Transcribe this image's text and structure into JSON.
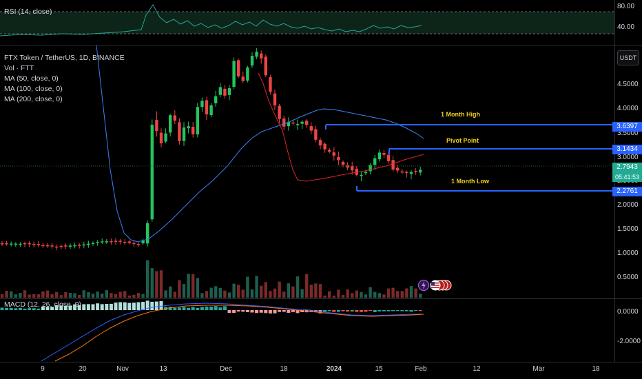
{
  "rsi": {
    "label": "RSI (14, close)",
    "ticks": [
      "80.00",
      "40.00"
    ]
  },
  "main": {
    "legend": [
      "FTX Token / TetherUS, 1D, BINANCE",
      "Vol · FTT",
      "MA (50, close, 0)",
      "MA (100, close, 0)",
      "MA (200, close, 0)"
    ],
    "currency_button": "USDT",
    "price_ticks": [
      "4.5000",
      "4.0000",
      "3.5000",
      "3.0000",
      "2.5000",
      "2.0000",
      "1.5000",
      "1.0000",
      "0.5000"
    ],
    "annotations": {
      "high_label": "1 Month High",
      "pivot_label": "Pivot Point",
      "low_label": "1 Month Low"
    },
    "price_tags": {
      "high": "3.6397",
      "pivot": "3.1434",
      "last": "2.7943",
      "countdown": "05:41:53",
      "low": "2.2761"
    },
    "colors": {
      "up": "#22c55e",
      "down": "#ef4444",
      "ma_blue": "#3b82f6",
      "ma_red": "#dc2626",
      "level_line": "#2962ff",
      "annotation": "#f2d11a",
      "last_price": "#22ab94"
    }
  },
  "macd": {
    "label": "MACD (12, 26, close, 9)",
    "ticks": [
      "0.0000",
      "-2.0000"
    ]
  },
  "time_axis": {
    "labels": [
      {
        "text": "9",
        "bold": false
      },
      {
        "text": "20",
        "bold": false
      },
      {
        "text": "Nov",
        "bold": false
      },
      {
        "text": "13",
        "bold": false
      },
      {
        "text": "Dec",
        "bold": false
      },
      {
        "text": "18",
        "bold": false
      },
      {
        "text": "2024",
        "bold": true
      },
      {
        "text": "15",
        "bold": false
      },
      {
        "text": "Feb",
        "bold": false
      },
      {
        "text": "12",
        "bold": false
      },
      {
        "text": "Mar",
        "bold": false
      },
      {
        "text": "18",
        "bold": false
      }
    ]
  },
  "chart_data": {
    "type": "candlestick",
    "symbol": "FTX Token / TetherUS",
    "interval": "1D",
    "exchange": "BINANCE",
    "y_range": [
      0.2,
      5.3
    ],
    "levels": [
      {
        "name": "1 Month High",
        "value": 3.6397
      },
      {
        "name": "Pivot Point",
        "value": 3.1434
      },
      {
        "name": "1 Month Low",
        "value": 2.2761
      }
    ],
    "last_price": 2.7943
  }
}
